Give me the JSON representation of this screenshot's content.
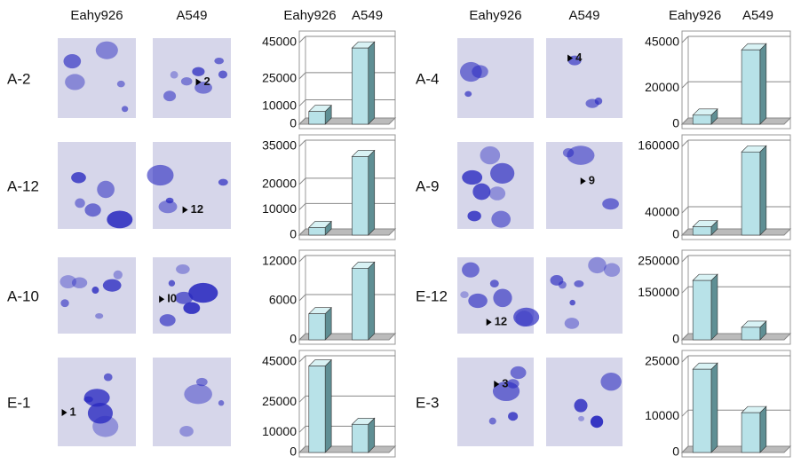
{
  "gel_headers": [
    "Eahy926",
    "A549",
    "Eahy926",
    "A549"
  ],
  "panels": [
    {
      "label": "A-2",
      "annotation": "2"
    },
    {
      "label": "A-12",
      "annotation": "12"
    },
    {
      "label": "A-10",
      "annotation": "I0"
    },
    {
      "label": "E-1",
      "annotation": "1"
    },
    {
      "label": "A-4",
      "annotation": "4"
    },
    {
      "label": "A-9",
      "annotation": "9"
    },
    {
      "label": "E-12",
      "annotation": "12"
    },
    {
      "label": "E-3",
      "annotation": "3"
    }
  ],
  "chart_data": [
    {
      "type": "bar",
      "categories": [
        "Eahy926",
        "A549"
      ],
      "values": [
        7000,
        42000
      ],
      "color": "#b8e2e8",
      "ylim": [
        0,
        45000
      ],
      "yticks": [
        0,
        10000,
        25000,
        45000
      ],
      "grid": true
    },
    {
      "type": "bar",
      "categories": [
        null,
        null
      ],
      "values": [
        3000,
        31000
      ],
      "color": "#b8e2e8",
      "ylim": [
        0,
        35000
      ],
      "yticks": [
        0,
        10000,
        20000,
        35000
      ],
      "grid": true
    },
    {
      "type": "bar",
      "categories": [
        null,
        null
      ],
      "values": [
        4000,
        11000
      ],
      "color": "#b8e2e8",
      "ylim": [
        0,
        12000
      ],
      "yticks": [
        0,
        6000,
        12000
      ],
      "grid": true
    },
    {
      "type": "bar",
      "categories": [
        null,
        null
      ],
      "values": [
        43000,
        14000
      ],
      "color": "#b8e2e8",
      "ylim": [
        0,
        45000
      ],
      "yticks": [
        0,
        10000,
        25000,
        45000
      ],
      "grid": true
    },
    {
      "type": "bar",
      "categories": [
        "Eahy926",
        "A549"
      ],
      "values": [
        5000,
        41000
      ],
      "color": "#b8e2e8",
      "ylim": [
        0,
        45000
      ],
      "yticks": [
        0,
        20000,
        45000
      ],
      "grid": true
    },
    {
      "type": "bar",
      "categories": [
        null,
        null
      ],
      "values": [
        15000,
        150000
      ],
      "color": "#b8e2e8",
      "ylim": [
        0,
        160000
      ],
      "yticks": [
        0,
        40000,
        160000
      ],
      "grid": true
    },
    {
      "type": "bar",
      "categories": [
        null,
        null
      ],
      "values": [
        190000,
        40000
      ],
      "color": "#b8e2e8",
      "ylim": [
        0,
        250000
      ],
      "yticks": [
        0,
        150000,
        250000
      ],
      "grid": true
    },
    {
      "type": "bar",
      "categories": [
        null,
        null
      ],
      "values": [
        23000,
        11000
      ],
      "color": "#b8e2e8",
      "ylim": [
        0,
        25000
      ],
      "yticks": [
        0,
        10000,
        25000
      ],
      "grid": true
    }
  ]
}
